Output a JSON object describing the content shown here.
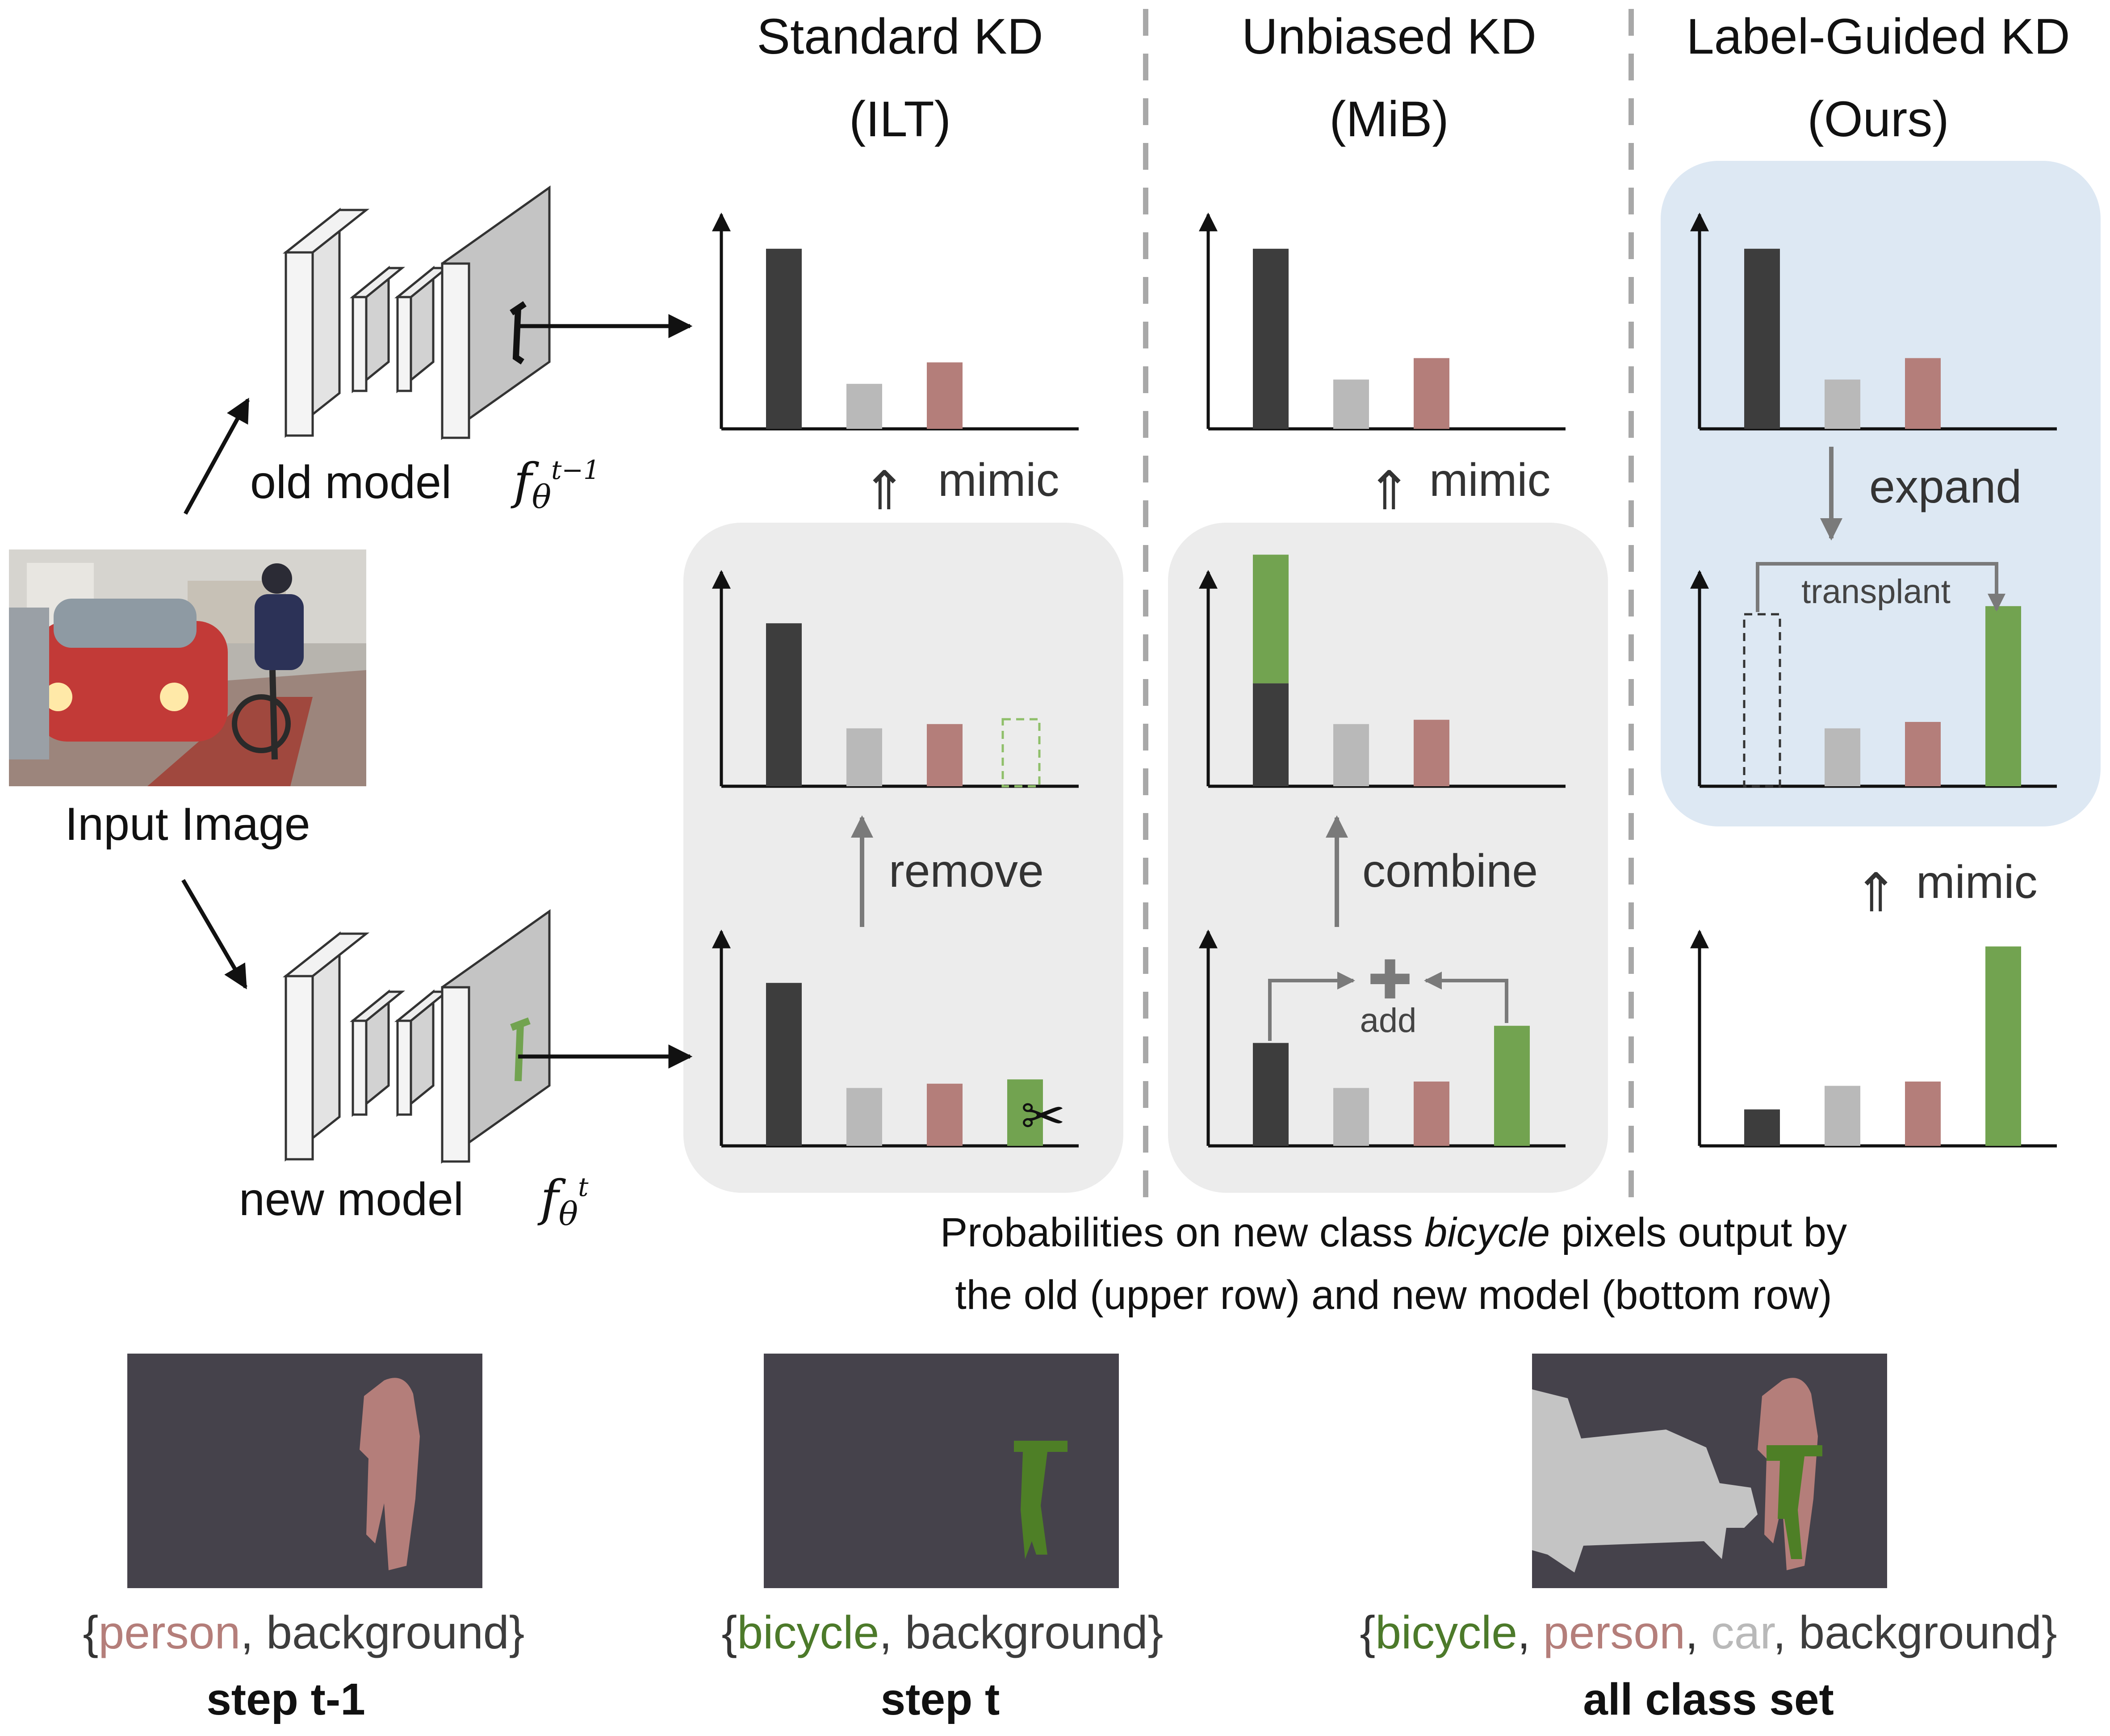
{
  "columns": [
    {
      "title_line1": "Standard KD",
      "title_line2": "(ILT)"
    },
    {
      "title_line1": "Unbiased KD",
      "title_line2": "(MiB)"
    },
    {
      "title_line1": "Label-Guided KD",
      "title_line2": "(Ours)"
    }
  ],
  "models": {
    "old_label": "old model",
    "old_math_base": "f",
    "old_math_sub": "θ",
    "old_math_sup": "t−1",
    "new_label": "new model",
    "new_math_base": "f",
    "new_math_sub": "θ",
    "new_math_sup": "t"
  },
  "input_label": "Input Image",
  "actions": {
    "mimic": "mimic",
    "remove": "remove",
    "combine": "combine",
    "add": "add",
    "expand": "expand",
    "transplant": "transplant"
  },
  "caption": {
    "line1_pre": "Probabilities on new class ",
    "line1_em": "bicycle",
    "line1_post": " pixels output by",
    "line2": "the old (upper row) and new model (bottom row)"
  },
  "legends": [
    {
      "parts": [
        {
          "text": "{",
          "color": "#333333"
        },
        {
          "text": "person",
          "color": "#b47e7a"
        },
        {
          "text": ", background}",
          "color": "#3d3d3d"
        }
      ],
      "step": "step t-1"
    },
    {
      "parts": [
        {
          "text": "{",
          "color": "#333333"
        },
        {
          "text": "bicycle",
          "color": "#4c7a2a"
        },
        {
          "text": ", background}",
          "color": "#3d3d3d"
        }
      ],
      "step": "step t"
    },
    {
      "parts": [
        {
          "text": "{",
          "color": "#333333"
        },
        {
          "text": "bicycle",
          "color": "#4c7a2a"
        },
        {
          "text": ", ",
          "color": "#333333"
        },
        {
          "text": "person",
          "color": "#b47e7a"
        },
        {
          "text": ", ",
          "color": "#333333"
        },
        {
          "text": "car",
          "color": "#b9b9b9"
        },
        {
          "text": ", background}",
          "color": "#3d3d3d"
        }
      ],
      "step": "all class set"
    }
  ],
  "colors": {
    "background_class": "#3d3d3d",
    "car_class": "#b9b9b9",
    "person_class": "#b47e7a",
    "bicycle_class": "#72a350",
    "panel_gray": "#ececec",
    "panel_blue": "#dde8f3",
    "mask_bg": "#45424b"
  },
  "bar_charts": {
    "ilt_old": [
      0.84,
      0.21,
      0.31,
      0
    ],
    "ilt_removed": [
      0.76,
      0.27,
      0.29,
      0
    ],
    "ilt_new": [
      0.76,
      0.27,
      0.29,
      0.31
    ],
    "mib_old": [
      0.84,
      0.23,
      0.33,
      0
    ],
    "mib_combined": [
      1.08,
      0.29,
      0.31,
      0
    ],
    "mib_new": [
      0.48,
      0.27,
      0.3,
      0.56
    ],
    "ours_old": [
      0.84,
      0.23,
      0.33,
      0
    ],
    "ours_target": [
      0,
      0.27,
      0.3,
      0.84
    ],
    "ours_new": [
      0.17,
      0.28,
      0.3,
      0.93
    ]
  }
}
